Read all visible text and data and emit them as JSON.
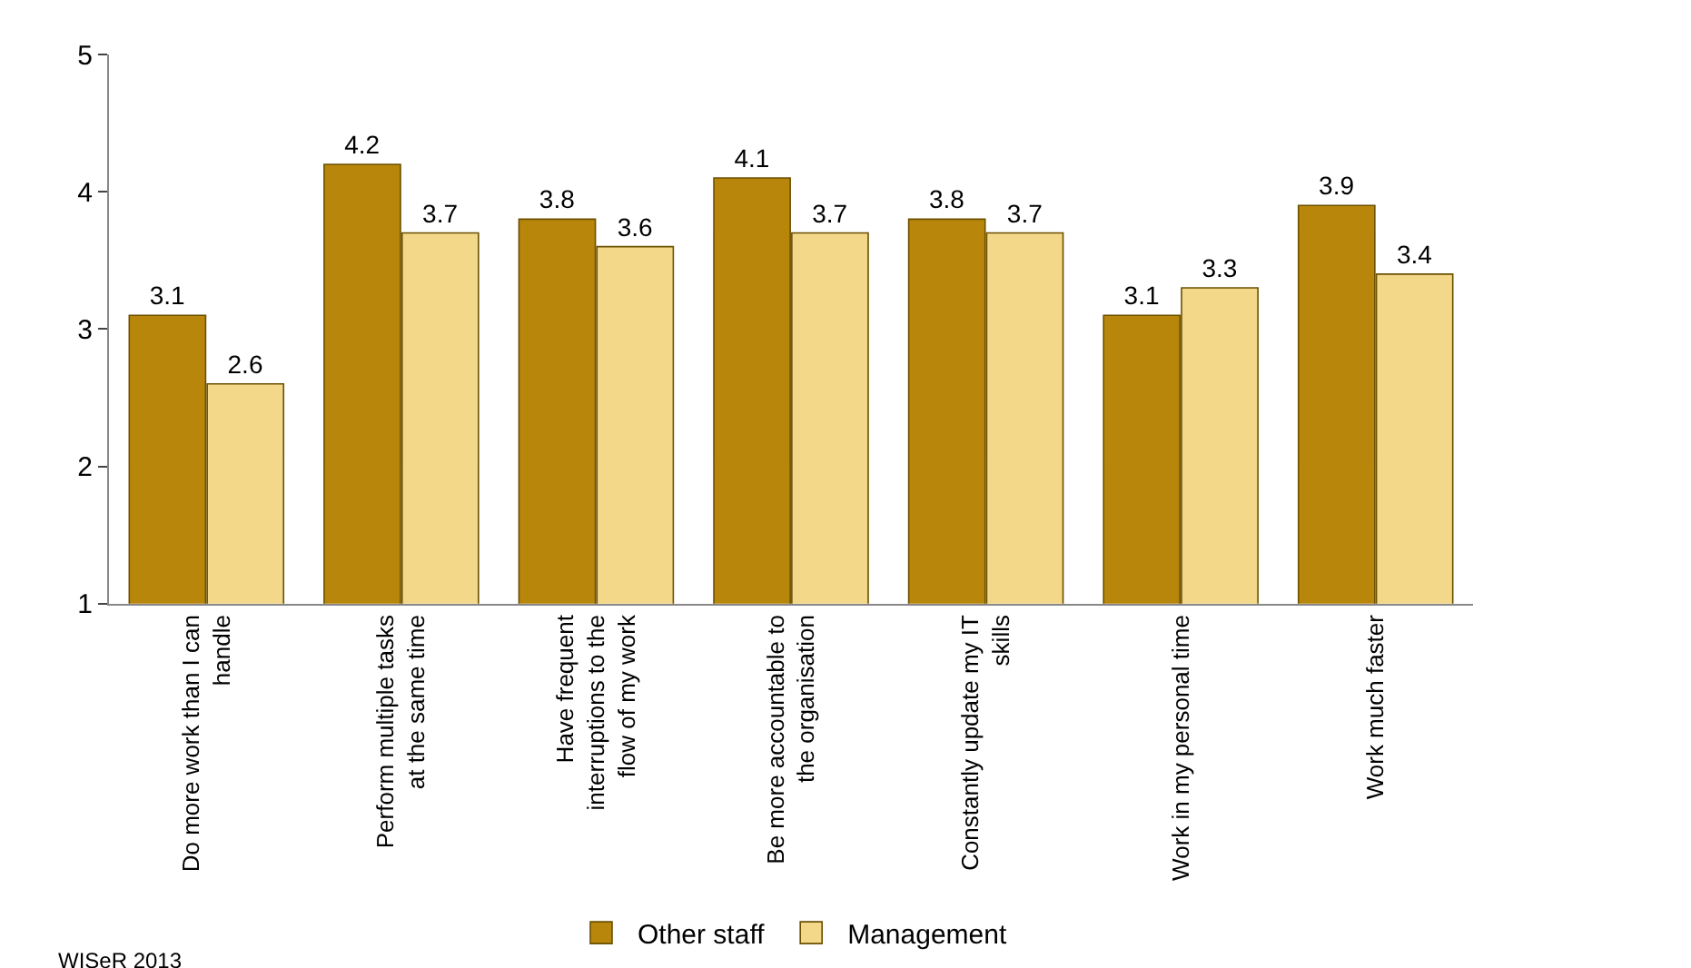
{
  "chart_data": {
    "type": "bar",
    "categories": [
      "Do more work than I can handle",
      "Perform multiple tasks at the same time",
      "Have frequent interruptions to the flow of my work",
      "Be more accountable to the organisation",
      "Constantly update my IT skills",
      "Work in my personal time",
      "Work much faster"
    ],
    "series": [
      {
        "name": "Other staff",
        "color": "#b8860b",
        "values": [
          3.1,
          4.2,
          3.8,
          4.1,
          3.8,
          3.1,
          3.9
        ]
      },
      {
        "name": "Management",
        "color": "#f3d88a",
        "values": [
          2.6,
          3.7,
          3.6,
          3.7,
          3.7,
          3.3,
          3.4
        ]
      }
    ],
    "ylim": [
      1,
      5
    ],
    "yticks": [
      1,
      2,
      3,
      4,
      5
    ],
    "legend": "bottom",
    "data_labels": true,
    "annotations": [
      "WISeR 2013"
    ]
  }
}
